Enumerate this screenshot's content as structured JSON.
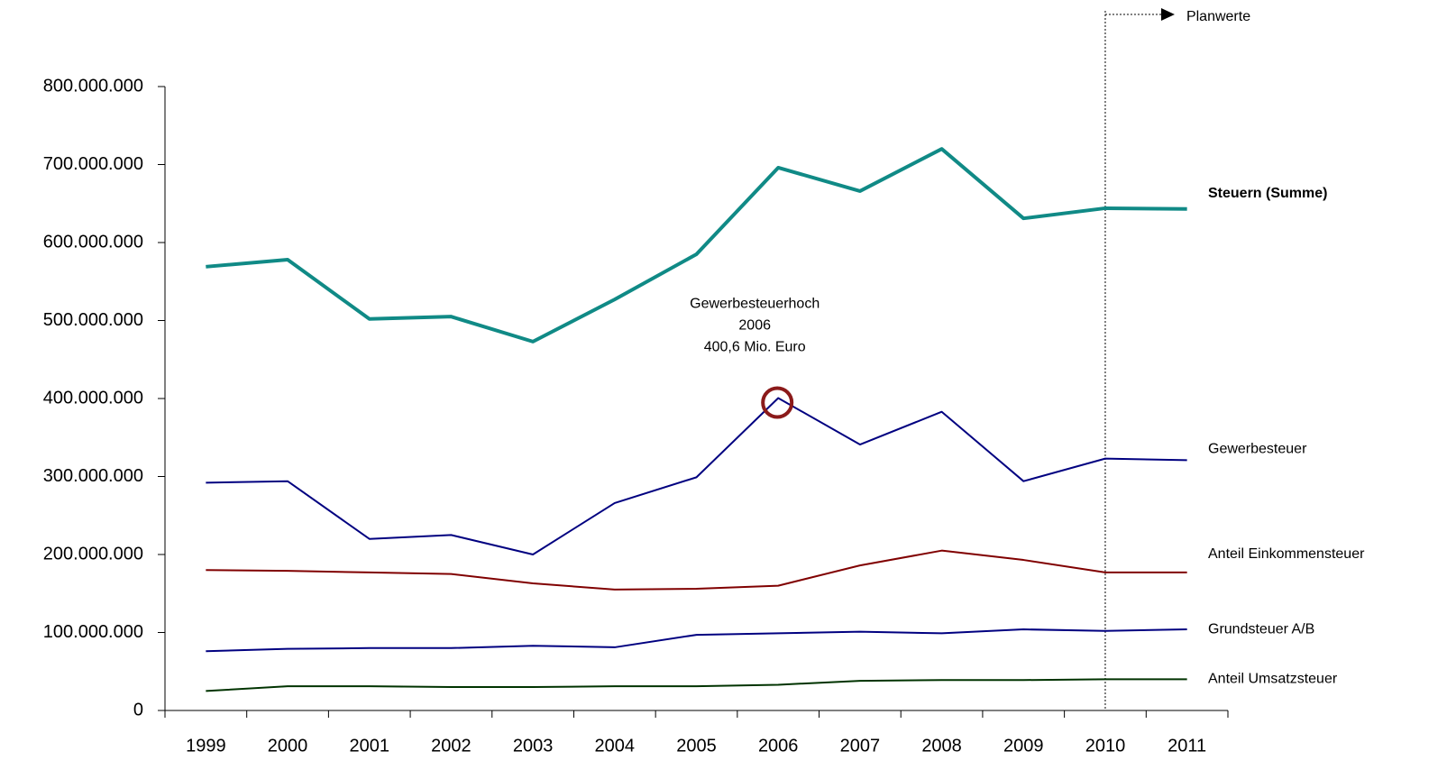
{
  "chart_data": {
    "type": "line",
    "categories": [
      "1999",
      "2000",
      "2001",
      "2002",
      "2003",
      "2004",
      "2005",
      "2006",
      "2007",
      "2008",
      "2009",
      "2010",
      "2011"
    ],
    "series": [
      {
        "name": "Steuern (Summe)",
        "color": "#108a86",
        "values": [
          569000000,
          578000000,
          502000000,
          505000000,
          473000000,
          527000000,
          585000000,
          696000000,
          666000000,
          720000000,
          631000000,
          644000000,
          643000000
        ]
      },
      {
        "name": "Gewerbesteuer",
        "color": "#000080",
        "values": [
          292000000,
          294000000,
          220000000,
          225000000,
          200000000,
          266000000,
          299000000,
          400600000,
          341000000,
          383000000,
          294000000,
          323000000,
          321000000
        ]
      },
      {
        "name": "Anteil Einkommensteuer",
        "color": "#800000",
        "values": [
          180000000,
          179000000,
          177000000,
          175000000,
          163000000,
          155000000,
          156000000,
          160000000,
          186000000,
          205000000,
          193000000,
          177000000,
          177000000
        ]
      },
      {
        "name": "Grundsteuer A/B",
        "color": "#000080",
        "values": [
          76000000,
          79000000,
          80000000,
          80000000,
          83000000,
          81000000,
          97000000,
          99000000,
          101000000,
          99000000,
          104000000,
          102000000,
          104000000
        ]
      },
      {
        "name": "Anteil Umsatzsteuer",
        "color": "#003300",
        "values": [
          25000000,
          31000000,
          31000000,
          30000000,
          30000000,
          31000000,
          31000000,
          33000000,
          38000000,
          39000000,
          39000000,
          40000000,
          40000000
        ]
      }
    ],
    "ylim": [
      0,
      800000000
    ],
    "yticks": [
      0,
      {
        "value": 100000000,
        "label": "100.000.000"
      },
      {
        "value": 200000000,
        "label": "200.000.000"
      },
      {
        "value": 300000000,
        "label": "300.000.000"
      },
      {
        "value": 400000000,
        "label": "400.000.000"
      },
      {
        "value": 500000000,
        "label": "500.000.000"
      },
      {
        "value": 600000000,
        "label": "600.000.000"
      },
      {
        "value": 700000000,
        "label": "700.000.000"
      },
      {
        "value": 800000000,
        "label": "800.000.000"
      }
    ],
    "annotations": [
      {
        "text": [
          "Gewerbesteuerhoch",
          "2006",
          "400,6 Mio. Euro"
        ],
        "category": "2006",
        "series": "Gewerbesteuer"
      },
      {
        "text": "Planwerte",
        "category": "2010"
      }
    ],
    "grid": false
  }
}
